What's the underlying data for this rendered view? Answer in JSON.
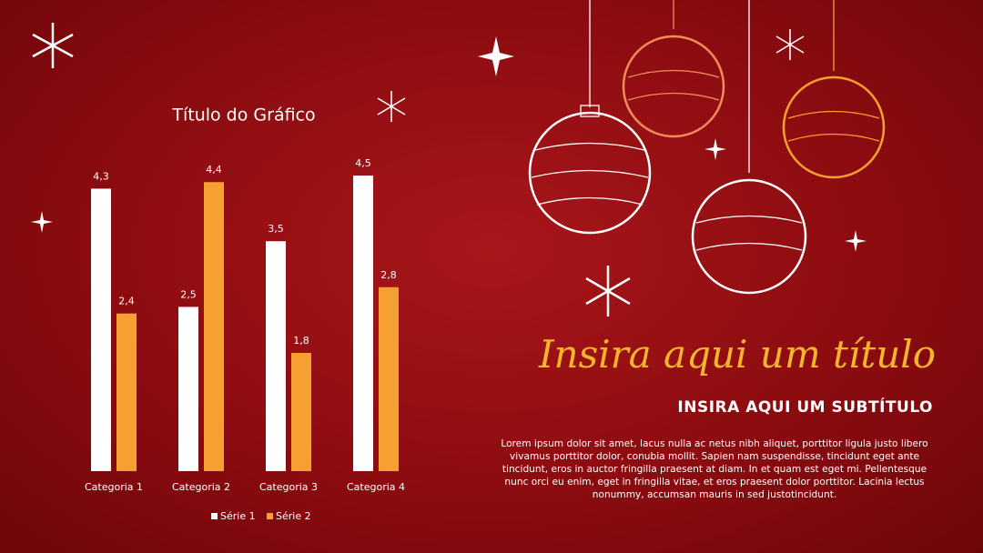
{
  "chart_data": {
    "type": "bar",
    "title": "Título do Gráfico",
    "categories": [
      "Categoria 1",
      "Categoria 2",
      "Categoria 3",
      "Categoria 4"
    ],
    "series": [
      {
        "name": "Série 1",
        "color": "#ffffff",
        "values": [
          4.3,
          2.5,
          3.5,
          4.5
        ],
        "value_labels": [
          "4,3",
          "2,5",
          "3,5",
          "4,5"
        ]
      },
      {
        "name": "Série 2",
        "color": "#f5a030",
        "values": [
          2.4,
          4.4,
          1.8,
          2.8
        ],
        "value_labels": [
          "2,4",
          "4,4",
          "1,8",
          "2,8"
        ]
      }
    ],
    "legend": "bottom"
  },
  "slide": {
    "title": "Insira aqui um título",
    "subtitle": "INSIRA AQUI UM SUBTÍTULO",
    "body": "Lorem ipsum dolor sit amet, lacus nulla ac netus nibh aliquet, porttitor ligula justo libero vivamus porttitor dolor, conubia mollit. Sapien nam suspendisse, tincidunt eget ante tincidunt, eros in auctor fringilla praesent at diam. In et quam est eget mi. Pellentesque nunc orci eu enim, eget in fringilla vitae, et eros praesent dolor porttitor. Lacinia lectus nonummy, accumsan mauris in sed justotincidunt."
  }
}
